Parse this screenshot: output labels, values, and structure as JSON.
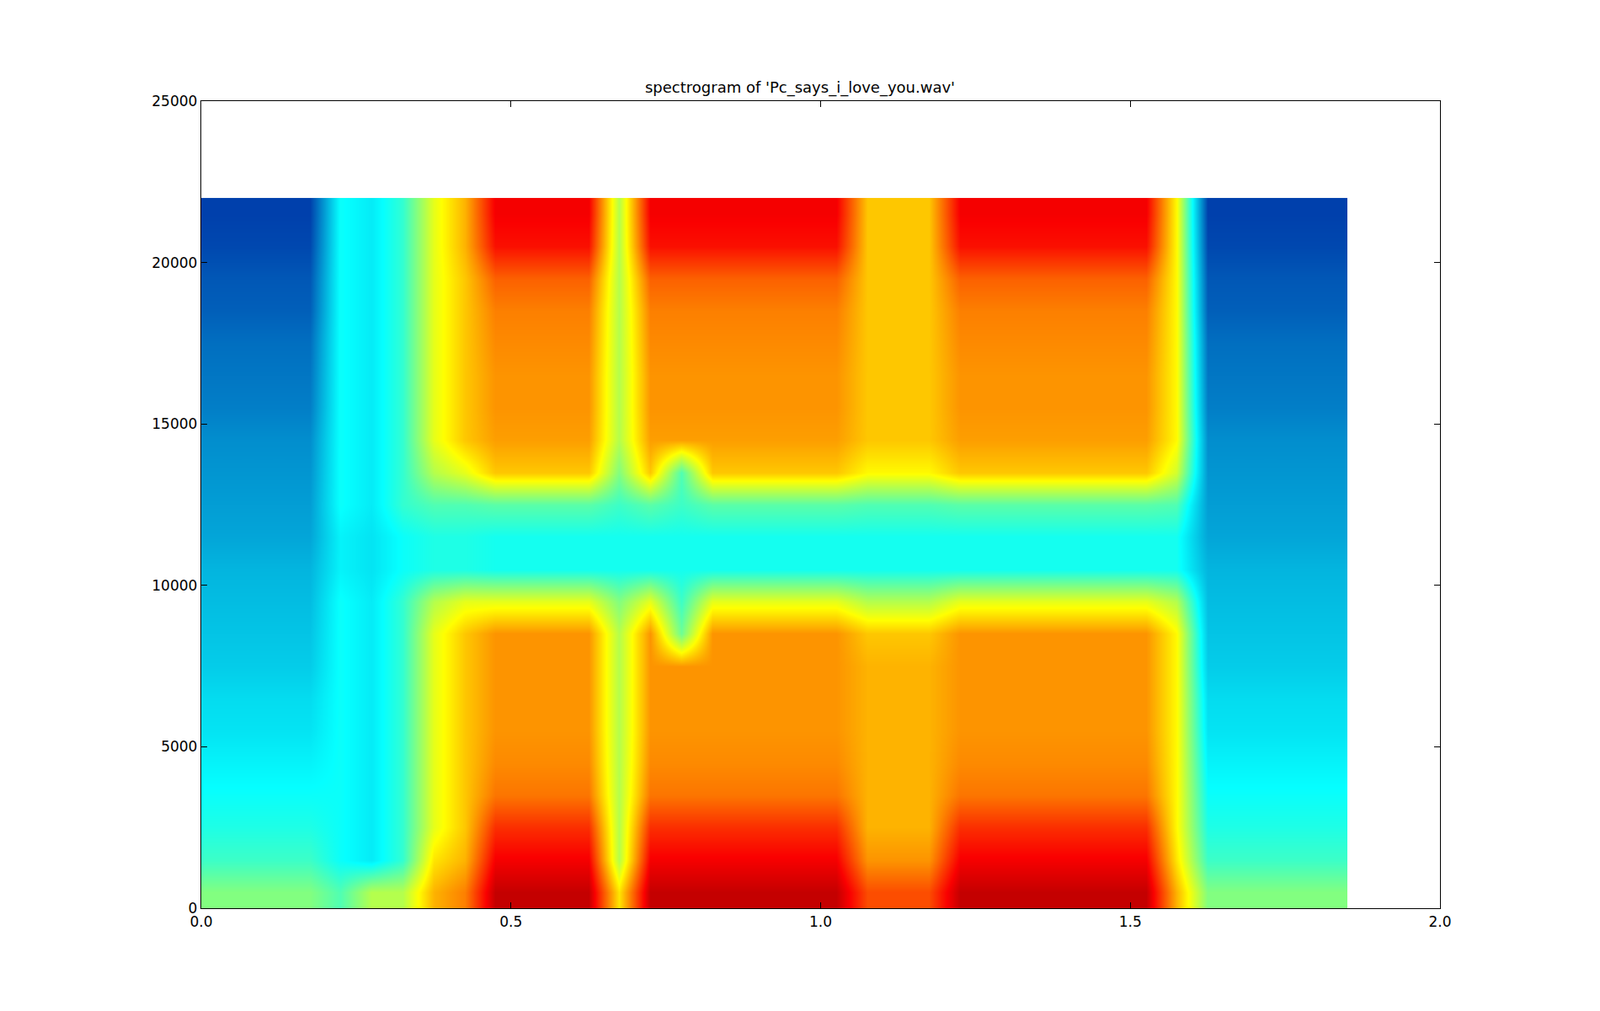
{
  "chart_data": {
    "type": "heatmap",
    "title": "spectrogram of 'Pc_says_i_love_you.wav'",
    "color": "Jet",
    "grid": false,
    "xlim": [
      0,
      2
    ],
    "ylim": [
      0,
      25000
    ],
    "xticks": [
      {
        "value": 0,
        "label": "0.0"
      },
      0.5,
      {
        "value": 1,
        "label": "1.0"
      },
      1.5,
      {
        "value": 2,
        "label": "2.0"
      }
    ],
    "yticks": [
      0,
      5000,
      10000,
      15000,
      20000,
      25000
    ],
    "zlim": [
      0,
      10
    ],
    "x": [
      0.025,
      0.075,
      0.125,
      0.175,
      0.225,
      0.275,
      0.325,
      0.375,
      0.425,
      0.475,
      0.525,
      0.575,
      0.625,
      0.675,
      0.725,
      0.775,
      0.825,
      0.875,
      0.925,
      0.975,
      1.025,
      1.075,
      1.125,
      1.175,
      1.225,
      1.275,
      1.325,
      1.375,
      1.425,
      1.475,
      1.525,
      1.575,
      1.625,
      1.675,
      1.725,
      1.775,
      1.825
    ],
    "y": [
      500,
      1500,
      2500,
      3500,
      4500,
      5500,
      6500,
      7500,
      8500,
      9500,
      10500,
      11500,
      12500,
      13500,
      14500,
      15500,
      16500,
      17500,
      18500,
      19500,
      20500,
      21500
    ],
    "z": [
      [
        5.0,
        5.0,
        5.0,
        5.0,
        4.5,
        5.5,
        5.5,
        7.0,
        7.5,
        9.3,
        9.3,
        9.3,
        9.3,
        6.5,
        9.3,
        9.3,
        9.3,
        9.3,
        9.3,
        9.3,
        9.3,
        8.0,
        8.0,
        8.0,
        9.3,
        9.3,
        9.3,
        9.3,
        9.3,
        9.3,
        9.3,
        7.0,
        5.0,
        5.0,
        5.0,
        5.0,
        5.0
      ],
      [
        4.3,
        4.3,
        4.3,
        4.3,
        3.8,
        3.5,
        4.2,
        6.5,
        7.0,
        8.8,
        8.8,
        8.8,
        8.8,
        5.5,
        8.8,
        8.8,
        8.8,
        8.8,
        8.8,
        8.8,
        8.8,
        7.3,
        7.3,
        7.3,
        8.8,
        8.8,
        8.8,
        8.8,
        8.8,
        8.8,
        8.8,
        6.5,
        4.3,
        4.3,
        4.3,
        4.3,
        4.3
      ],
      [
        4.0,
        4.0,
        4.0,
        4.0,
        3.8,
        3.5,
        4.2,
        6.0,
        6.8,
        8.3,
        8.3,
        8.3,
        8.3,
        5.5,
        8.3,
        8.3,
        8.3,
        8.3,
        8.3,
        8.3,
        8.3,
        7.0,
        7.0,
        7.0,
        8.3,
        8.3,
        8.3,
        8.3,
        8.3,
        8.3,
        8.3,
        6.3,
        4.0,
        4.0,
        4.0,
        4.0,
        4.0
      ],
      [
        3.8,
        3.8,
        3.8,
        3.8,
        3.8,
        3.5,
        4.2,
        6.0,
        6.8,
        7.6,
        7.6,
        7.6,
        7.6,
        5.5,
        7.6,
        7.6,
        7.6,
        7.6,
        7.6,
        7.6,
        7.6,
        7.0,
        7.0,
        7.0,
        7.6,
        7.6,
        7.6,
        7.6,
        7.6,
        7.6,
        7.6,
        6.3,
        3.8,
        3.8,
        3.8,
        3.8,
        3.8
      ],
      [
        3.6,
        3.6,
        3.6,
        3.6,
        3.8,
        3.5,
        4.2,
        6.0,
        6.8,
        7.4,
        7.4,
        7.4,
        7.4,
        5.5,
        7.4,
        7.4,
        7.4,
        7.4,
        7.4,
        7.4,
        7.4,
        7.0,
        7.0,
        7.0,
        7.4,
        7.4,
        7.4,
        7.4,
        7.4,
        7.4,
        7.4,
        6.3,
        3.6,
        3.6,
        3.6,
        3.6,
        3.6
      ],
      [
        3.4,
        3.4,
        3.4,
        3.4,
        3.8,
        3.5,
        4.2,
        6.0,
        6.8,
        7.3,
        7.3,
        7.3,
        7.3,
        5.5,
        7.3,
        7.3,
        7.3,
        7.3,
        7.3,
        7.3,
        7.3,
        7.0,
        7.0,
        7.0,
        7.3,
        7.3,
        7.3,
        7.3,
        7.3,
        7.3,
        7.3,
        6.3,
        3.4,
        3.4,
        3.4,
        3.4,
        3.4
      ],
      [
        3.3,
        3.3,
        3.3,
        3.3,
        3.8,
        3.5,
        4.2,
        6.0,
        6.8,
        7.3,
        7.3,
        7.3,
        7.3,
        5.5,
        7.3,
        7.3,
        7.3,
        7.3,
        7.3,
        7.3,
        7.3,
        7.0,
        7.0,
        7.0,
        7.3,
        7.3,
        7.3,
        7.3,
        7.3,
        7.3,
        7.3,
        6.3,
        3.3,
        3.3,
        3.3,
        3.3,
        3.3
      ],
      [
        3.1,
        3.1,
        3.1,
        3.1,
        3.8,
        3.5,
        4.2,
        6.0,
        6.8,
        7.3,
        7.3,
        7.3,
        7.3,
        5.5,
        7.3,
        7.3,
        7.3,
        7.3,
        7.3,
        7.3,
        7.3,
        7.0,
        7.0,
        7.0,
        7.3,
        7.3,
        7.3,
        7.3,
        7.3,
        7.3,
        7.3,
        6.3,
        3.1,
        3.1,
        3.1,
        3.1,
        3.1
      ],
      [
        3.0,
        3.0,
        3.0,
        3.0,
        3.8,
        3.5,
        4.2,
        6.0,
        6.8,
        7.3,
        7.3,
        7.3,
        7.3,
        5.5,
        7.3,
        4.8,
        7.3,
        7.3,
        7.3,
        7.3,
        7.3,
        6.8,
        6.8,
        6.8,
        7.3,
        7.3,
        7.3,
        7.3,
        7.3,
        7.3,
        7.3,
        6.3,
        3.0,
        3.0,
        3.0,
        3.0,
        3.0
      ],
      [
        2.9,
        2.9,
        2.9,
        2.9,
        3.8,
        3.5,
        4.2,
        5.5,
        6.0,
        6.0,
        6.0,
        6.0,
        6.0,
        5.0,
        6.0,
        4.3,
        6.0,
        6.0,
        6.0,
        6.0,
        6.0,
        5.5,
        5.5,
        5.5,
        6.0,
        6.0,
        6.0,
        6.0,
        6.0,
        6.0,
        6.0,
        5.5,
        2.9,
        2.9,
        2.9,
        2.9,
        2.9
      ],
      [
        2.8,
        2.8,
        2.8,
        2.8,
        3.6,
        3.4,
        3.8,
        4.0,
        4.0,
        3.9,
        3.9,
        3.9,
        3.9,
        3.9,
        3.9,
        3.9,
        3.9,
        3.9,
        3.9,
        3.9,
        3.9,
        3.9,
        3.9,
        3.9,
        3.9,
        3.9,
        3.9,
        3.9,
        3.9,
        3.9,
        3.9,
        3.9,
        2.8,
        2.8,
        2.8,
        2.8,
        2.8
      ],
      [
        2.6,
        2.6,
        2.6,
        2.6,
        3.6,
        3.4,
        3.8,
        4.0,
        4.0,
        3.9,
        3.9,
        3.9,
        3.9,
        3.9,
        3.9,
        3.9,
        3.9,
        3.9,
        3.9,
        3.9,
        3.9,
        3.9,
        3.9,
        3.9,
        3.9,
        3.9,
        3.9,
        3.9,
        3.9,
        3.9,
        3.9,
        3.9,
        2.6,
        2.6,
        2.6,
        2.6,
        2.6
      ],
      [
        2.5,
        2.5,
        2.5,
        2.5,
        3.8,
        3.5,
        4.2,
        4.5,
        4.5,
        4.6,
        4.6,
        4.6,
        4.6,
        4.3,
        4.6,
        4.3,
        4.6,
        4.6,
        4.6,
        4.6,
        4.6,
        4.5,
        4.5,
        4.5,
        4.6,
        4.6,
        4.6,
        4.6,
        4.6,
        4.6,
        4.6,
        4.5,
        2.5,
        2.5,
        2.5,
        2.5,
        2.5
      ],
      [
        2.4,
        2.4,
        2.4,
        2.4,
        3.8,
        3.5,
        4.2,
        5.5,
        6.0,
        6.8,
        6.8,
        6.8,
        6.8,
        5.0,
        6.8,
        4.5,
        6.8,
        6.8,
        6.8,
        6.8,
        6.8,
        6.3,
        6.3,
        6.3,
        6.8,
        6.8,
        6.8,
        6.8,
        6.8,
        6.8,
        6.8,
        5.8,
        2.4,
        2.4,
        2.4,
        2.4,
        2.4
      ],
      [
        2.3,
        2.3,
        2.3,
        2.3,
        3.8,
        3.5,
        4.2,
        6.0,
        6.8,
        7.2,
        7.2,
        7.2,
        7.2,
        5.5,
        7.2,
        7.2,
        7.2,
        7.2,
        7.2,
        7.2,
        7.2,
        6.8,
        6.8,
        6.8,
        7.2,
        7.2,
        7.2,
        7.2,
        7.2,
        7.2,
        7.2,
        6.3,
        2.3,
        2.3,
        2.3,
        2.3,
        2.3
      ],
      [
        2.1,
        2.1,
        2.1,
        2.1,
        3.8,
        3.5,
        4.2,
        6.0,
        6.8,
        7.3,
        7.3,
        7.3,
        7.3,
        5.5,
        7.3,
        7.3,
        7.3,
        7.3,
        7.3,
        7.3,
        7.3,
        6.8,
        6.8,
        6.8,
        7.3,
        7.3,
        7.3,
        7.3,
        7.3,
        7.3,
        7.3,
        6.3,
        2.1,
        2.1,
        2.1,
        2.1,
        2.1
      ],
      [
        2.0,
        2.0,
        2.0,
        2.0,
        3.8,
        3.5,
        4.2,
        6.0,
        6.8,
        7.3,
        7.3,
        7.3,
        7.3,
        5.5,
        7.3,
        7.3,
        7.3,
        7.3,
        7.3,
        7.3,
        7.3,
        6.8,
        6.8,
        6.8,
        7.3,
        7.3,
        7.3,
        7.3,
        7.3,
        7.3,
        7.3,
        6.3,
        2.0,
        2.0,
        2.0,
        2.0,
        2.0
      ],
      [
        1.9,
        1.9,
        1.9,
        1.9,
        3.8,
        3.5,
        4.2,
        6.0,
        6.8,
        7.4,
        7.4,
        7.4,
        7.4,
        5.5,
        7.4,
        7.4,
        7.4,
        7.4,
        7.4,
        7.4,
        7.4,
        6.8,
        6.8,
        6.8,
        7.4,
        7.4,
        7.4,
        7.4,
        7.4,
        7.4,
        7.4,
        6.3,
        1.9,
        1.9,
        1.9,
        1.9,
        1.9
      ],
      [
        1.7,
        1.7,
        1.7,
        1.7,
        3.8,
        3.5,
        4.2,
        6.0,
        6.8,
        7.5,
        7.5,
        7.5,
        7.5,
        5.5,
        7.5,
        7.5,
        7.5,
        7.5,
        7.5,
        7.5,
        7.5,
        6.8,
        6.8,
        6.8,
        7.5,
        7.5,
        7.5,
        7.5,
        7.5,
        7.5,
        7.5,
        6.3,
        1.7,
        1.7,
        1.7,
        1.7,
        1.7
      ],
      [
        1.6,
        1.6,
        1.6,
        1.6,
        3.8,
        3.5,
        4.2,
        6.0,
        6.8,
        7.8,
        7.8,
        7.8,
        7.8,
        5.5,
        7.8,
        7.8,
        7.8,
        7.8,
        7.8,
        7.8,
        7.8,
        6.8,
        6.8,
        6.8,
        7.8,
        7.8,
        7.8,
        7.8,
        7.8,
        7.8,
        7.8,
        6.3,
        1.6,
        1.6,
        1.6,
        1.6,
        1.6
      ],
      [
        1.4,
        1.4,
        1.4,
        1.4,
        3.8,
        3.5,
        4.2,
        6.0,
        7.0,
        8.6,
        8.6,
        8.6,
        8.6,
        5.5,
        8.6,
        8.6,
        8.6,
        8.6,
        8.6,
        8.6,
        8.6,
        6.8,
        6.8,
        6.8,
        8.6,
        8.6,
        8.6,
        8.6,
        8.6,
        8.6,
        8.6,
        6.3,
        1.4,
        1.4,
        1.4,
        1.4,
        1.4
      ],
      [
        1.3,
        1.3,
        1.3,
        1.3,
        3.8,
        3.5,
        4.2,
        6.0,
        7.0,
        8.8,
        8.8,
        8.8,
        8.8,
        5.5,
        8.8,
        8.8,
        8.8,
        8.8,
        8.8,
        8.8,
        8.8,
        6.8,
        6.8,
        6.8,
        8.8,
        8.8,
        8.8,
        8.8,
        8.8,
        8.8,
        8.8,
        6.3,
        1.3,
        1.3,
        1.3,
        1.3,
        1.3
      ]
    ]
  }
}
